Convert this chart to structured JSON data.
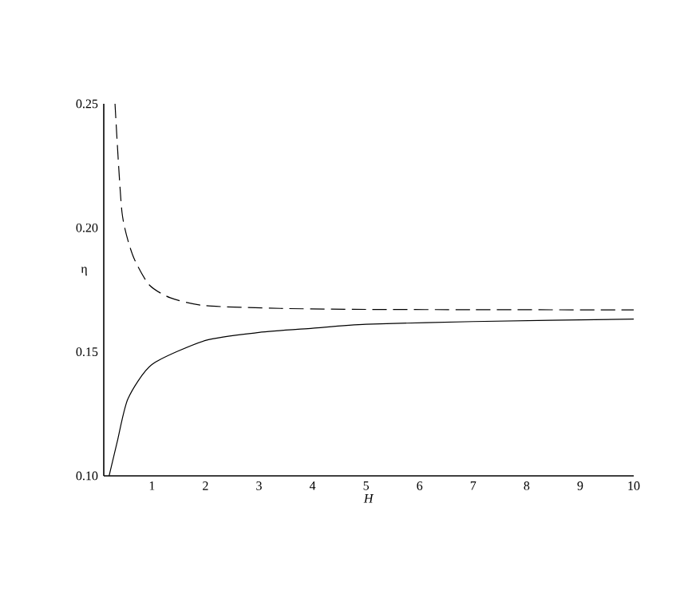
{
  "chart_data": {
    "type": "line",
    "xlabel": "*H*",
    "ylabel": "η",
    "xlim": [
      0.1,
      10
    ],
    "ylim": [
      0.1,
      0.25
    ],
    "xticks": [
      1,
      2,
      3,
      4,
      5,
      6,
      7,
      8,
      9,
      10
    ],
    "yticks": [
      {
        "value": 0.1,
        "label": "0.10"
      },
      {
        "value": 0.15,
        "label": "0.15"
      },
      {
        "value": 0.2,
        "label": "0.20"
      },
      {
        "value": 0.25,
        "label": "0.25"
      }
    ],
    "grid": false,
    "series": [
      {
        "color": "#000000",
        "line_style": "dashed",
        "x": [
          0.31,
          0.44,
          0.64,
          0.94,
          1.34,
          2,
          3.4,
          5,
          7,
          10
        ],
        "values": [
          0.25,
          0.2063,
          0.189,
          0.1772,
          0.1718,
          0.1686,
          0.1675,
          0.1671,
          0.167,
          0.1669
        ]
      },
      {
        "color": "#000000",
        "line_style": "solid",
        "x": [
          0.2,
          0.35,
          0.55,
          1,
          2,
          3,
          4,
          5,
          7,
          10
        ],
        "values": [
          0.1,
          0.1136,
          0.131,
          0.1449,
          0.1546,
          0.1578,
          0.1595,
          0.1611,
          0.1622,
          0.1632
        ]
      }
    ]
  }
}
